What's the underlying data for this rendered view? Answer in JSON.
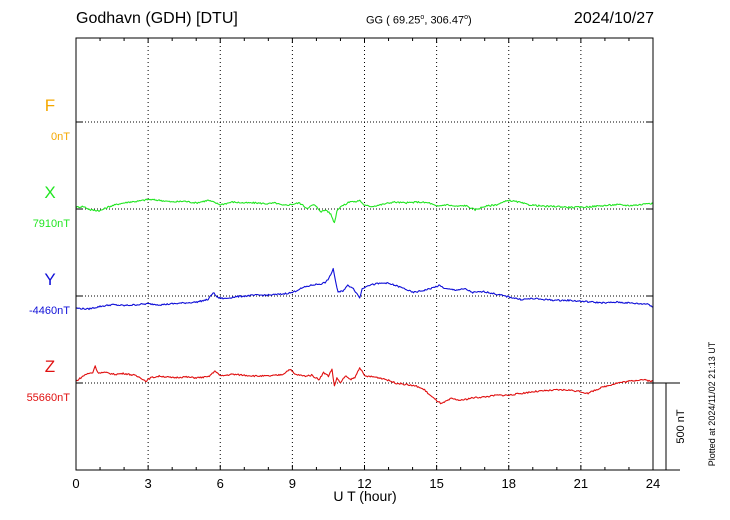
{
  "header": {
    "station": "Godhavn (GDH)  [DTU]",
    "coords_prefix": "GG ( 69.25",
    "coords_mid": ", 306.47",
    "coords_suffix": ")",
    "degree_mark": "o",
    "date": "2024/10/27"
  },
  "footer": {
    "plotted": "Plotted at 2024/11/02 21:13 UT"
  },
  "chart_data": {
    "type": "line",
    "title": "Godhavn (GDH)  [DTU]",
    "xlabel": "U T (hour)",
    "xlim": [
      0,
      24
    ],
    "xticks": [
      0,
      3,
      6,
      9,
      12,
      15,
      18,
      21,
      24
    ],
    "grid": true,
    "scale_bar": {
      "value_nT": 500,
      "label": "500 nT"
    },
    "series": [
      {
        "name": "F",
        "baseline_label": "0nT",
        "color": "#f5a800",
        "points": []
      },
      {
        "name": "X",
        "baseline_label": "7910nT",
        "color": "#22e622",
        "points": [
          [
            0,
            7920
          ],
          [
            0.3,
            7925
          ],
          [
            0.6,
            7905
          ],
          [
            1.0,
            7900
          ],
          [
            1.4,
            7925
          ],
          [
            1.8,
            7940
          ],
          [
            2.2,
            7950
          ],
          [
            2.6,
            7955
          ],
          [
            3.0,
            7965
          ],
          [
            3.5,
            7960
          ],
          [
            4.0,
            7950
          ],
          [
            4.5,
            7955
          ],
          [
            5.0,
            7945
          ],
          [
            5.5,
            7960
          ],
          [
            5.7,
            7950
          ],
          [
            6.0,
            7935
          ],
          [
            6.5,
            7950
          ],
          [
            7.0,
            7945
          ],
          [
            7.5,
            7945
          ],
          [
            8.0,
            7940
          ],
          [
            8.3,
            7945
          ],
          [
            8.6,
            7930
          ],
          [
            8.9,
            7935
          ],
          [
            9.3,
            7945
          ],
          [
            9.6,
            7915
          ],
          [
            9.9,
            7935
          ],
          [
            10.2,
            7895
          ],
          [
            10.4,
            7905
          ],
          [
            10.6,
            7880
          ],
          [
            10.75,
            7830
          ],
          [
            10.85,
            7900
          ],
          [
            11.0,
            7925
          ],
          [
            11.2,
            7935
          ],
          [
            11.4,
            7955
          ],
          [
            11.6,
            7950
          ],
          [
            11.8,
            7960
          ],
          [
            12.0,
            7930
          ],
          [
            12.3,
            7925
          ],
          [
            12.7,
            7935
          ],
          [
            13.2,
            7950
          ],
          [
            13.7,
            7945
          ],
          [
            14.2,
            7950
          ],
          [
            14.7,
            7945
          ],
          [
            15.0,
            7925
          ],
          [
            15.4,
            7935
          ],
          [
            15.8,
            7925
          ],
          [
            16.2,
            7930
          ],
          [
            16.6,
            7905
          ],
          [
            17.0,
            7925
          ],
          [
            17.5,
            7935
          ],
          [
            18.0,
            7960
          ],
          [
            18.4,
            7950
          ],
          [
            18.8,
            7935
          ],
          [
            19.5,
            7925
          ],
          [
            20.0,
            7925
          ],
          [
            20.5,
            7920
          ],
          [
            21.0,
            7920
          ],
          [
            21.5,
            7925
          ],
          [
            22.0,
            7930
          ],
          [
            22.5,
            7935
          ],
          [
            23.0,
            7930
          ],
          [
            23.5,
            7935
          ],
          [
            23.8,
            7945
          ],
          [
            24.0,
            7940
          ]
        ]
      },
      {
        "name": "Y",
        "baseline_label": "-4460nT",
        "color": "#1010d8",
        "points": [
          [
            0,
            -4530
          ],
          [
            0.5,
            -4535
          ],
          [
            1.0,
            -4520
          ],
          [
            1.5,
            -4510
          ],
          [
            2.0,
            -4515
          ],
          [
            2.5,
            -4510
          ],
          [
            3.0,
            -4505
          ],
          [
            3.5,
            -4510
          ],
          [
            4.0,
            -4505
          ],
          [
            4.5,
            -4500
          ],
          [
            5.0,
            -4495
          ],
          [
            5.5,
            -4480
          ],
          [
            5.7,
            -4440
          ],
          [
            5.9,
            -4470
          ],
          [
            6.2,
            -4475
          ],
          [
            6.6,
            -4465
          ],
          [
            7.0,
            -4460
          ],
          [
            7.5,
            -4455
          ],
          [
            8.0,
            -4455
          ],
          [
            8.5,
            -4450
          ],
          [
            9.0,
            -4440
          ],
          [
            9.3,
            -4420
          ],
          [
            9.6,
            -4405
          ],
          [
            9.9,
            -4395
          ],
          [
            10.2,
            -4390
          ],
          [
            10.4,
            -4380
          ],
          [
            10.6,
            -4340
          ],
          [
            10.7,
            -4300
          ],
          [
            10.8,
            -4380
          ],
          [
            10.9,
            -4440
          ],
          [
            11.1,
            -4430
          ],
          [
            11.3,
            -4400
          ],
          [
            11.5,
            -4410
          ],
          [
            11.7,
            -4450
          ],
          [
            11.8,
            -4470
          ],
          [
            11.9,
            -4420
          ],
          [
            12.1,
            -4400
          ],
          [
            12.5,
            -4390
          ],
          [
            12.9,
            -4385
          ],
          [
            13.3,
            -4400
          ],
          [
            13.7,
            -4420
          ],
          [
            14.0,
            -4440
          ],
          [
            14.4,
            -4430
          ],
          [
            14.8,
            -4415
          ],
          [
            15.1,
            -4400
          ],
          [
            15.4,
            -4420
          ],
          [
            15.8,
            -4425
          ],
          [
            16.2,
            -4420
          ],
          [
            16.5,
            -4440
          ],
          [
            17.0,
            -4435
          ],
          [
            17.5,
            -4450
          ],
          [
            18.0,
            -4465
          ],
          [
            18.5,
            -4480
          ],
          [
            19.0,
            -4475
          ],
          [
            19.5,
            -4480
          ],
          [
            20.0,
            -4485
          ],
          [
            20.5,
            -4485
          ],
          [
            21.0,
            -4490
          ],
          [
            21.5,
            -4495
          ],
          [
            22.0,
            -4500
          ],
          [
            22.5,
            -4495
          ],
          [
            23.0,
            -4500
          ],
          [
            23.5,
            -4505
          ],
          [
            23.8,
            -4505
          ],
          [
            24.0,
            -4525
          ]
        ]
      },
      {
        "name": "Z",
        "baseline_label": "55660nT",
        "color": "#e01010",
        "points": [
          [
            0,
            55670
          ],
          [
            0.4,
            55710
          ],
          [
            0.7,
            55720
          ],
          [
            0.8,
            55760
          ],
          [
            0.9,
            55720
          ],
          [
            1.2,
            55720
          ],
          [
            1.6,
            55710
          ],
          [
            2.0,
            55715
          ],
          [
            2.4,
            55705
          ],
          [
            2.7,
            55690
          ],
          [
            2.9,
            55670
          ],
          [
            3.1,
            55690
          ],
          [
            3.5,
            55700
          ],
          [
            4.0,
            55690
          ],
          [
            4.5,
            55695
          ],
          [
            5.0,
            55690
          ],
          [
            5.5,
            55695
          ],
          [
            5.8,
            55730
          ],
          [
            6.0,
            55700
          ],
          [
            6.5,
            55710
          ],
          [
            7.0,
            55705
          ],
          [
            7.5,
            55700
          ],
          [
            8.0,
            55700
          ],
          [
            8.4,
            55705
          ],
          [
            8.6,
            55710
          ],
          [
            8.9,
            55740
          ],
          [
            9.1,
            55710
          ],
          [
            9.5,
            55700
          ],
          [
            9.8,
            55705
          ],
          [
            10.1,
            55680
          ],
          [
            10.3,
            55720
          ],
          [
            10.5,
            55700
          ],
          [
            10.65,
            55740
          ],
          [
            10.75,
            55640
          ],
          [
            10.85,
            55690
          ],
          [
            11.0,
            55660
          ],
          [
            11.2,
            55700
          ],
          [
            11.4,
            55680
          ],
          [
            11.6,
            55690
          ],
          [
            11.8,
            55750
          ],
          [
            12.0,
            55700
          ],
          [
            12.4,
            55695
          ],
          [
            12.8,
            55685
          ],
          [
            13.3,
            55660
          ],
          [
            13.8,
            55650
          ],
          [
            14.2,
            55640
          ],
          [
            14.5,
            55620
          ],
          [
            14.8,
            55580
          ],
          [
            15.0,
            55560
          ],
          [
            15.2,
            55540
          ],
          [
            15.4,
            55555
          ],
          [
            15.6,
            55570
          ],
          [
            16.0,
            55560
          ],
          [
            16.5,
            55575
          ],
          [
            17.0,
            55580
          ],
          [
            17.5,
            55590
          ],
          [
            18.0,
            55590
          ],
          [
            18.5,
            55600
          ],
          [
            19.0,
            55610
          ],
          [
            19.5,
            55615
          ],
          [
            20.0,
            55620
          ],
          [
            20.5,
            55620
          ],
          [
            21.0,
            55610
          ],
          [
            21.3,
            55600
          ],
          [
            21.6,
            55620
          ],
          [
            22.0,
            55640
          ],
          [
            22.5,
            55660
          ],
          [
            23.0,
            55670
          ],
          [
            23.5,
            55680
          ],
          [
            24.0,
            55670
          ]
        ]
      }
    ]
  }
}
